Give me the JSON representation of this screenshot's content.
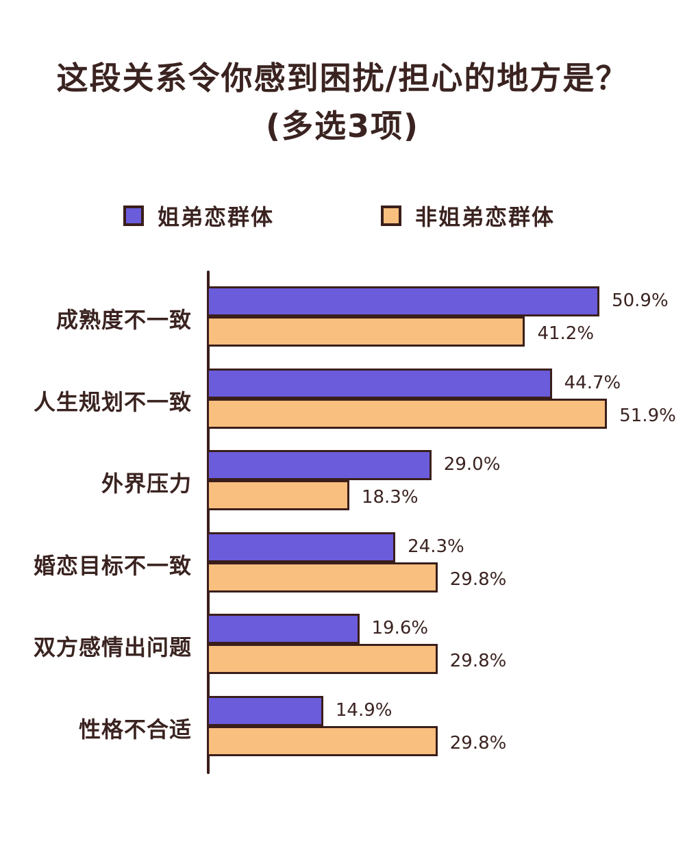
{
  "title": {
    "line1": "这段关系令你感到困扰/担心的地方是？",
    "line2": "(多选3项)"
  },
  "legend": [
    {
      "label": "姐弟恋群体",
      "color": "#6a5cdb"
    },
    {
      "label": "非姐弟恋群体",
      "color": "#f9bf7f"
    }
  ],
  "colors": {
    "series_a": "#6a5cdb",
    "series_b": "#f9bf7f",
    "outline": "#3a1e1a",
    "text": "#3a2320"
  },
  "chart_data": {
    "type": "bar",
    "orientation": "horizontal",
    "title": "这段关系令你感到困扰/担心的地方是？(多选3项)",
    "xlabel": "",
    "ylabel": "",
    "categories": [
      "成熟度不一致",
      "人生规划不一致",
      "外界压力",
      "婚恋目标不一致",
      "双方感情出问题",
      "性格不合适"
    ],
    "series": [
      {
        "name": "姐弟恋群体",
        "values": [
          50.9,
          44.7,
          29.0,
          24.3,
          19.6,
          14.9
        ],
        "labels": [
          "50.9%",
          "44.7%",
          "29.0%",
          "24.3%",
          "19.6%",
          "14.9%"
        ]
      },
      {
        "name": "非姐弟恋群体",
        "values": [
          41.2,
          51.9,
          18.3,
          29.8,
          29.8,
          29.8
        ],
        "labels": [
          "41.2%",
          "51.9%",
          "18.3%",
          "29.8%",
          "29.8%",
          "29.8%"
        ]
      }
    ],
    "unit": "%",
    "grid": false,
    "legend_position": "top",
    "xlim": [
      0,
      55
    ]
  }
}
